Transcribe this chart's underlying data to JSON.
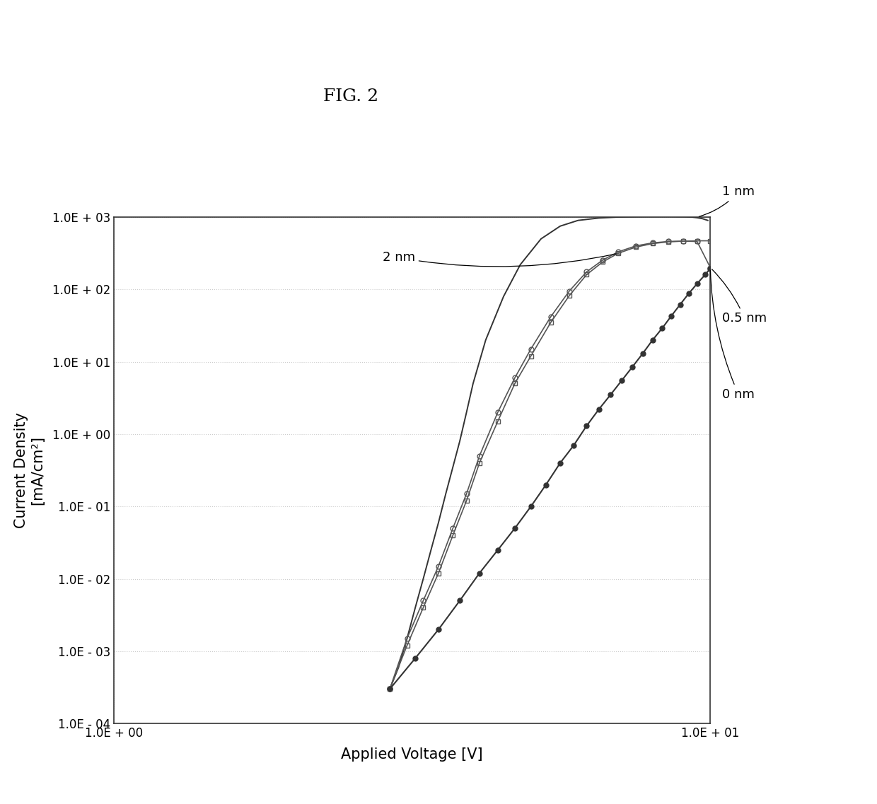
{
  "title": "FIG. 2",
  "xlabel": "Applied Voltage [V]",
  "ylabel": "Current Density\n[mA/cm²]",
  "xlim": [
    1.0,
    10.0
  ],
  "ylim": [
    0.0001,
    1000.0
  ],
  "background_color": "#ffffff",
  "grid_color": "#cccccc",
  "curves": [
    {
      "label": "1 nm",
      "color": "#333333",
      "marker": null,
      "markersize": null,
      "linewidth": 1.4,
      "linestyle": "-",
      "voltage": [
        2.9,
        3.0,
        3.1,
        3.2,
        3.3,
        3.4,
        3.5,
        3.6,
        3.7,
        3.8,
        3.9,
        4.0,
        4.2,
        4.5,
        4.8,
        5.2,
        5.6,
        6.0,
        6.5,
        7.0,
        7.5,
        8.0,
        8.5,
        9.0,
        9.3,
        9.5,
        9.7,
        9.9
      ],
      "current": [
        0.0003,
        0.0006,
        0.0015,
        0.004,
        0.01,
        0.025,
        0.06,
        0.15,
        0.35,
        0.8,
        2.0,
        5.0,
        20.0,
        80.0,
        220.0,
        500.0,
        750.0,
        900.0,
        970.0,
        1000.0,
        1010.0,
        1015.0,
        1015.0,
        1010.0,
        1000.0,
        980.0,
        950.0,
        900.0
      ]
    },
    {
      "label": "0.5 nm",
      "color": "#555555",
      "marker": "o",
      "markersize": 5,
      "linewidth": 1.2,
      "linestyle": "-",
      "voltage": [
        2.9,
        3.1,
        3.3,
        3.5,
        3.7,
        3.9,
        4.1,
        4.4,
        4.7,
        5.0,
        5.4,
        5.8,
        6.2,
        6.6,
        7.0,
        7.5,
        8.0,
        8.5,
        9.0,
        9.5,
        10.0
      ],
      "current": [
        0.0003,
        0.0015,
        0.005,
        0.015,
        0.05,
        0.15,
        0.5,
        2.0,
        6.0,
        15.0,
        42.0,
        95.0,
        175.0,
        255.0,
        330.0,
        400.0,
        440.0,
        460.0,
        465.0,
        460.0,
        200.0
      ]
    },
    {
      "label": "2 nm",
      "color": "#555555",
      "marker": "s",
      "markersize": 5,
      "linewidth": 1.2,
      "linestyle": "-",
      "voltage": [
        2.9,
        3.1,
        3.3,
        3.5,
        3.7,
        3.9,
        4.1,
        4.4,
        4.7,
        5.0,
        5.4,
        5.8,
        6.2,
        6.6,
        7.0,
        7.5,
        8.0,
        8.5,
        9.0,
        9.5,
        10.0
      ],
      "current": [
        0.0003,
        0.0012,
        0.004,
        0.012,
        0.04,
        0.12,
        0.4,
        1.5,
        5.0,
        12.0,
        35.0,
        82.0,
        160.0,
        240.0,
        315.0,
        385.0,
        430.0,
        455.0,
        465.0,
        470.0,
        470.0
      ]
    },
    {
      "label": "0 nm",
      "color": "#333333",
      "marker": "o",
      "markersize": 5,
      "linewidth": 1.5,
      "linestyle": "-",
      "voltage": [
        2.9,
        3.2,
        3.5,
        3.8,
        4.1,
        4.4,
        4.7,
        5.0,
        5.3,
        5.6,
        5.9,
        6.2,
        6.5,
        6.8,
        7.1,
        7.4,
        7.7,
        8.0,
        8.3,
        8.6,
        8.9,
        9.2,
        9.5,
        9.8,
        10.0
      ],
      "current": [
        0.0003,
        0.0008,
        0.002,
        0.005,
        0.012,
        0.025,
        0.05,
        0.1,
        0.2,
        0.4,
        0.7,
        1.3,
        2.2,
        3.5,
        5.5,
        8.5,
        13.0,
        20.0,
        29.0,
        43.0,
        62.0,
        88.0,
        120.0,
        160.0,
        195.0
      ]
    }
  ]
}
